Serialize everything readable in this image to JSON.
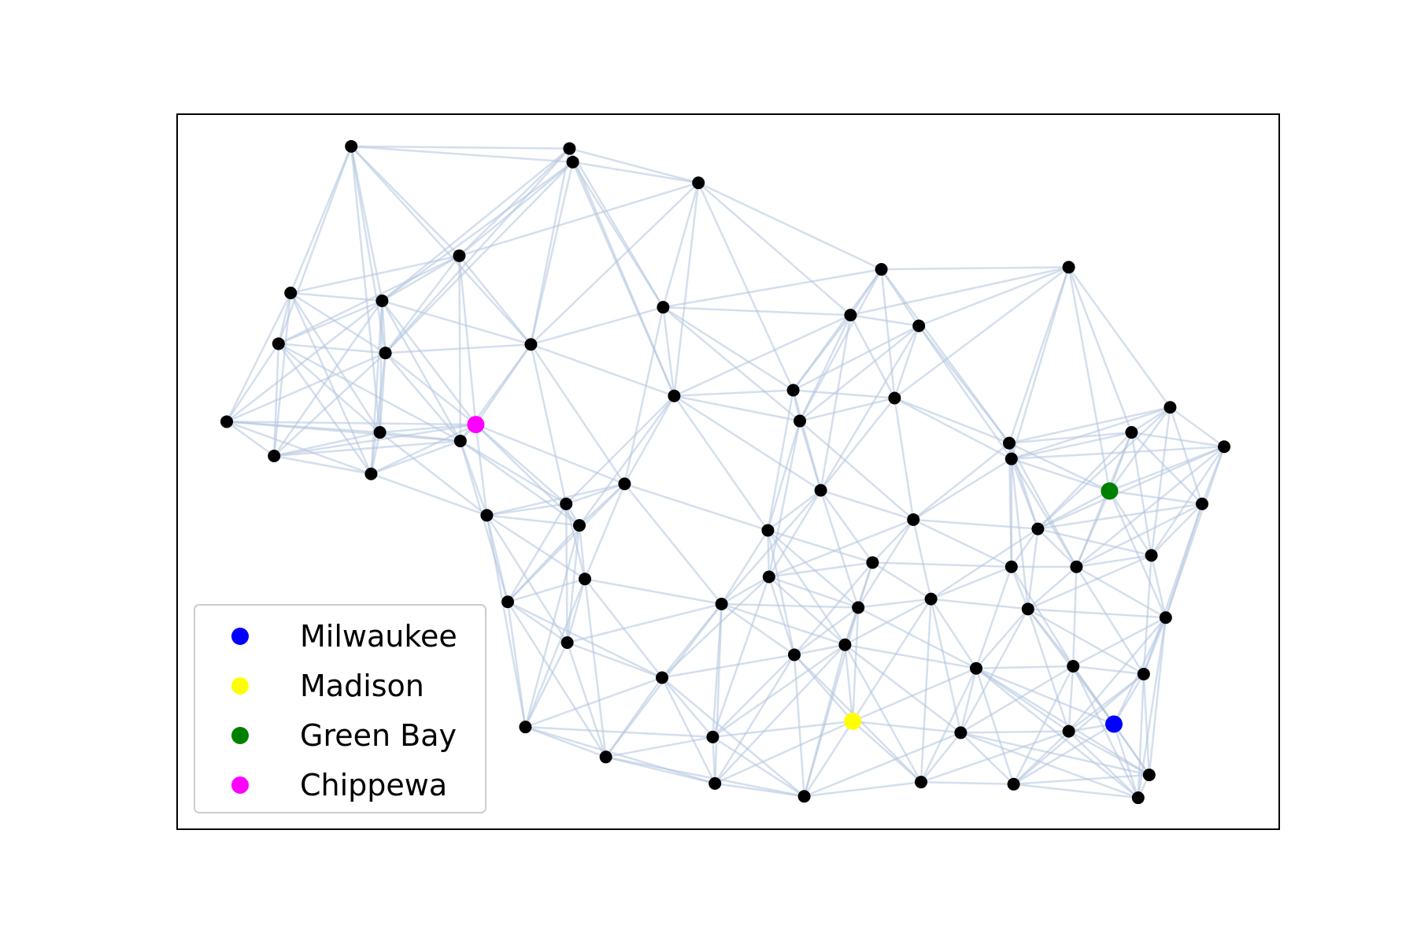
{
  "chart_data": {
    "type": "network",
    "title": "",
    "xlabel": "",
    "ylabel": "",
    "xlim": [
      0,
      100
    ],
    "ylim": [
      0,
      100
    ],
    "axes_ticks": false,
    "grid": false,
    "legend_placement": "lower-left",
    "colors": {
      "node": "#000000",
      "edge": "#b0c4de",
      "legend_frame": "#cccccc"
    },
    "highlighted": [
      {
        "name": "Milwaukee",
        "color": "#0000ff",
        "x": 85.0,
        "y": 14.7
      },
      {
        "name": "Madison",
        "color": "#ffff00",
        "x": 61.3,
        "y": 15.1
      },
      {
        "name": "Green Bay",
        "color": "#008000",
        "x": 84.6,
        "y": 47.3
      },
      {
        "name": "Chippewa",
        "color": "#ff00ff",
        "x": 27.1,
        "y": 56.6
      }
    ],
    "nodes": [
      {
        "x": 15.8,
        "y": 95.5
      },
      {
        "x": 35.6,
        "y": 95.2
      },
      {
        "x": 35.9,
        "y": 93.3
      },
      {
        "x": 47.3,
        "y": 90.4
      },
      {
        "x": 25.6,
        "y": 80.2
      },
      {
        "x": 10.3,
        "y": 75.0
      },
      {
        "x": 18.6,
        "y": 73.9
      },
      {
        "x": 44.1,
        "y": 73.0
      },
      {
        "x": 63.9,
        "y": 78.3
      },
      {
        "x": 80.9,
        "y": 78.6
      },
      {
        "x": 61.1,
        "y": 71.9
      },
      {
        "x": 67.3,
        "y": 70.4
      },
      {
        "x": 9.2,
        "y": 67.9
      },
      {
        "x": 18.9,
        "y": 66.6
      },
      {
        "x": 32.1,
        "y": 67.8
      },
      {
        "x": 45.1,
        "y": 60.6
      },
      {
        "x": 55.9,
        "y": 61.4
      },
      {
        "x": 65.1,
        "y": 60.3
      },
      {
        "x": 4.5,
        "y": 57.0
      },
      {
        "x": 18.4,
        "y": 55.5
      },
      {
        "x": 25.7,
        "y": 54.3
      },
      {
        "x": 8.8,
        "y": 52.2
      },
      {
        "x": 17.6,
        "y": 49.7
      },
      {
        "x": 56.5,
        "y": 57.1
      },
      {
        "x": 90.1,
        "y": 59.0
      },
      {
        "x": 86.6,
        "y": 55.5
      },
      {
        "x": 95.0,
        "y": 53.5
      },
      {
        "x": 75.5,
        "y": 54.0
      },
      {
        "x": 75.7,
        "y": 51.8
      },
      {
        "x": 28.1,
        "y": 43.9
      },
      {
        "x": 35.3,
        "y": 45.5
      },
      {
        "x": 36.5,
        "y": 42.5
      },
      {
        "x": 40.6,
        "y": 48.3
      },
      {
        "x": 53.6,
        "y": 41.8
      },
      {
        "x": 58.4,
        "y": 47.4
      },
      {
        "x": 66.8,
        "y": 43.3
      },
      {
        "x": 78.1,
        "y": 42.0
      },
      {
        "x": 93.0,
        "y": 45.5
      },
      {
        "x": 30.0,
        "y": 31.8
      },
      {
        "x": 37.0,
        "y": 35.0
      },
      {
        "x": 49.4,
        "y": 31.5
      },
      {
        "x": 53.7,
        "y": 35.3
      },
      {
        "x": 63.1,
        "y": 37.3
      },
      {
        "x": 75.7,
        "y": 36.7
      },
      {
        "x": 81.6,
        "y": 36.7
      },
      {
        "x": 88.4,
        "y": 38.3
      },
      {
        "x": 61.8,
        "y": 31.0
      },
      {
        "x": 68.4,
        "y": 32.2
      },
      {
        "x": 77.2,
        "y": 30.8
      },
      {
        "x": 89.7,
        "y": 29.6
      },
      {
        "x": 35.4,
        "y": 26.1
      },
      {
        "x": 56.0,
        "y": 24.4
      },
      {
        "x": 60.6,
        "y": 25.8
      },
      {
        "x": 44.0,
        "y": 21.2
      },
      {
        "x": 72.5,
        "y": 22.5
      },
      {
        "x": 81.3,
        "y": 22.8
      },
      {
        "x": 87.7,
        "y": 21.7
      },
      {
        "x": 31.6,
        "y": 14.3
      },
      {
        "x": 48.6,
        "y": 12.9
      },
      {
        "x": 71.1,
        "y": 13.5
      },
      {
        "x": 80.9,
        "y": 13.7
      },
      {
        "x": 38.9,
        "y": 10.1
      },
      {
        "x": 48.8,
        "y": 6.4
      },
      {
        "x": 56.9,
        "y": 4.6
      },
      {
        "x": 67.5,
        "y": 6.6
      },
      {
        "x": 75.9,
        "y": 6.3
      },
      {
        "x": 88.2,
        "y": 7.6
      },
      {
        "x": 87.2,
        "y": 4.4
      }
    ]
  }
}
